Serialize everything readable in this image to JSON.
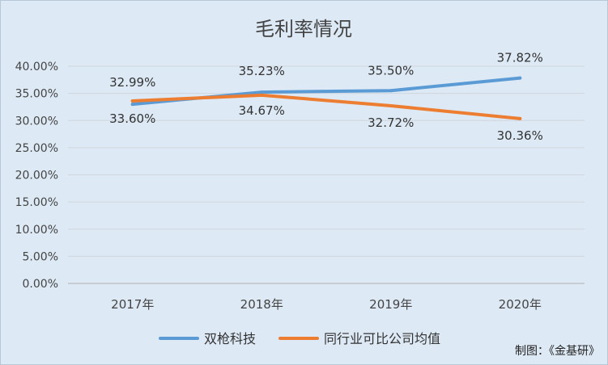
{
  "chart_data": {
    "type": "line",
    "title": "毛利率情况",
    "categories": [
      "2017年",
      "2018年",
      "2019年",
      "2020年"
    ],
    "ylim": [
      0,
      40
    ],
    "yticks": [
      "0.00%",
      "5.00%",
      "10.00%",
      "15.00%",
      "20.00%",
      "25.00%",
      "30.00%",
      "35.00%",
      "40.00%"
    ],
    "grid": true,
    "legend_position": "bottom",
    "series": [
      {
        "name": "双枪科技",
        "color": "#5b9bd5",
        "values": [
          32.99,
          35.23,
          35.5,
          37.82
        ],
        "labels": [
          "32.99%",
          "35.23%",
          "35.50%",
          "37.82%"
        ]
      },
      {
        "name": "同行业可比公司均值",
        "color": "#ed7d31",
        "values": [
          33.6,
          34.67,
          32.72,
          30.36
        ],
        "labels": [
          "33.60%",
          "34.67%",
          "32.72%",
          "30.36%"
        ]
      }
    ]
  },
  "credit": "制图：《金基研》"
}
